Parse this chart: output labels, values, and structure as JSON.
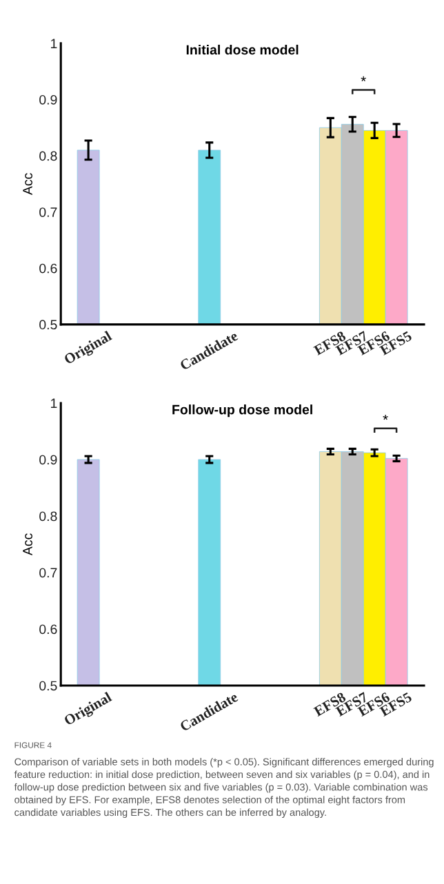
{
  "chart_data": [
    {
      "type": "bar",
      "title": "Initial dose model",
      "ylabel": "Acc",
      "categories": [
        "Original",
        null,
        null,
        null,
        null,
        null,
        null,
        null,
        null,
        null,
        null,
        "Candidate",
        null,
        null,
        null,
        null,
        null,
        null,
        null,
        null,
        null,
        null,
        "EFS8",
        null,
        "EFS7",
        null,
        "EFS6",
        null,
        "EFS5"
      ],
      "values": [
        0.81,
        null,
        null,
        null,
        null,
        null,
        null,
        null,
        null,
        null,
        null,
        0.81,
        null,
        null,
        null,
        null,
        null,
        null,
        null,
        null,
        null,
        null,
        0.85,
        null,
        0.856,
        null,
        0.845,
        null,
        0.845
      ],
      "errors": [
        0.017,
        null,
        null,
        null,
        null,
        null,
        null,
        null,
        null,
        null,
        null,
        0.0135,
        null,
        null,
        null,
        null,
        null,
        null,
        null,
        null,
        null,
        null,
        0.017,
        null,
        0.013,
        null,
        0.0135,
        null,
        0.0115
      ],
      "colors": [
        "#c5bfe6",
        null,
        null,
        null,
        null,
        null,
        null,
        null,
        null,
        null,
        null,
        "#6fd8e6",
        null,
        null,
        null,
        null,
        null,
        null,
        null,
        null,
        null,
        null,
        "#efe0b0",
        null,
        "#c0c0c0",
        null,
        "#ffee00",
        null,
        "#fda9c8"
      ],
      "ylim": [
        0.5,
        1
      ],
      "yticks": [
        0.5,
        0.6,
        0.7,
        0.8,
        0.9,
        1
      ],
      "grid": false,
      "legend": false,
      "annotations": [
        "*"
      ]
    },
    {
      "type": "bar",
      "title": "Follow-up dose model",
      "ylabel": "Acc",
      "categories": [
        "Original",
        null,
        null,
        null,
        null,
        null,
        null,
        null,
        null,
        null,
        null,
        "Candidate",
        null,
        null,
        null,
        null,
        null,
        null,
        null,
        null,
        null,
        null,
        "EFS8",
        null,
        "EFS7",
        null,
        "EFS6",
        null,
        "EFS5"
      ],
      "values": [
        0.9,
        null,
        null,
        null,
        null,
        null,
        null,
        null,
        null,
        null,
        null,
        0.9,
        null,
        null,
        null,
        null,
        null,
        null,
        null,
        null,
        null,
        null,
        0.914,
        null,
        0.914,
        null,
        0.912,
        null,
        0.902
      ],
      "errors": [
        0.006,
        null,
        null,
        null,
        null,
        null,
        null,
        null,
        null,
        null,
        null,
        0.006,
        null,
        null,
        null,
        null,
        null,
        null,
        null,
        null,
        null,
        null,
        0.005,
        null,
        0.005,
        null,
        0.006,
        null,
        0.005
      ],
      "colors": [
        "#c5bfe6",
        null,
        null,
        null,
        null,
        null,
        null,
        null,
        null,
        null,
        null,
        "#6fd8e6",
        null,
        null,
        null,
        null,
        null,
        null,
        null,
        null,
        null,
        null,
        "#efe0b0",
        null,
        "#c0c0c0",
        null,
        "#ffee00",
        null,
        "#fda9c8"
      ],
      "ylim": [
        0.5,
        1
      ],
      "yticks": [
        0.5,
        0.6,
        0.7,
        0.8,
        0.9,
        1
      ],
      "grid": false,
      "legend": false,
      "annotations": [
        "*",
        "FIGURE 4",
        "Comparison of variable sets in both models (*p < 0.05). Significant differences emerged during feature reduction: in initial dose prediction, between seven and six variables (p = 0.04), and in follow-up dose prediction between six and five variables (p = 0.03). Variable combination was obtained by EFS. For example, EFS8 denotes selection of the optimal eight factors from candidate variables using EFS. The others can be inferred by analogy."
      ]
    }
  ]
}
